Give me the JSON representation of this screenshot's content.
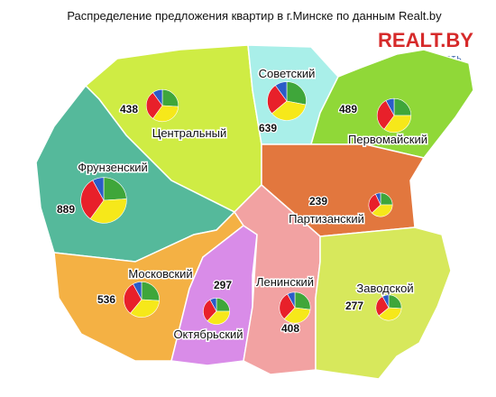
{
  "title": "Распределение предложения квартир в г.Минске по данным  Realt.by",
  "logo": {
    "name": "REALT.BY",
    "subtitle": "НЕДВИЖИМОСТЬ"
  },
  "pie_colors": [
    "#3fa63a",
    "#f6e81a",
    "#e8202a",
    "#2a5cc8"
  ],
  "districts": [
    {
      "name": "Центральный",
      "count": 438,
      "shares": [
        26,
        34,
        30,
        10
      ]
    },
    {
      "name": "Советский",
      "count": 639,
      "shares": [
        28,
        36,
        26,
        10
      ]
    },
    {
      "name": "Первомайский",
      "count": 489,
      "shares": [
        25,
        35,
        32,
        8
      ]
    },
    {
      "name": "Фрунзенский",
      "count": 889,
      "shares": [
        24,
        36,
        32,
        8
      ]
    },
    {
      "name": "Партизанский",
      "count": 239,
      "shares": [
        25,
        38,
        30,
        7
      ]
    },
    {
      "name": "Московский",
      "count": 536,
      "shares": [
        26,
        35,
        31,
        8
      ]
    },
    {
      "name": "Октябрьский",
      "count": 297,
      "shares": [
        25,
        37,
        30,
        8
      ]
    },
    {
      "name": "Ленинский",
      "count": 408,
      "shares": [
        27,
        35,
        30,
        8
      ]
    },
    {
      "name": "Заводской",
      "count": 277,
      "shares": [
        26,
        38,
        28,
        8
      ]
    }
  ]
}
